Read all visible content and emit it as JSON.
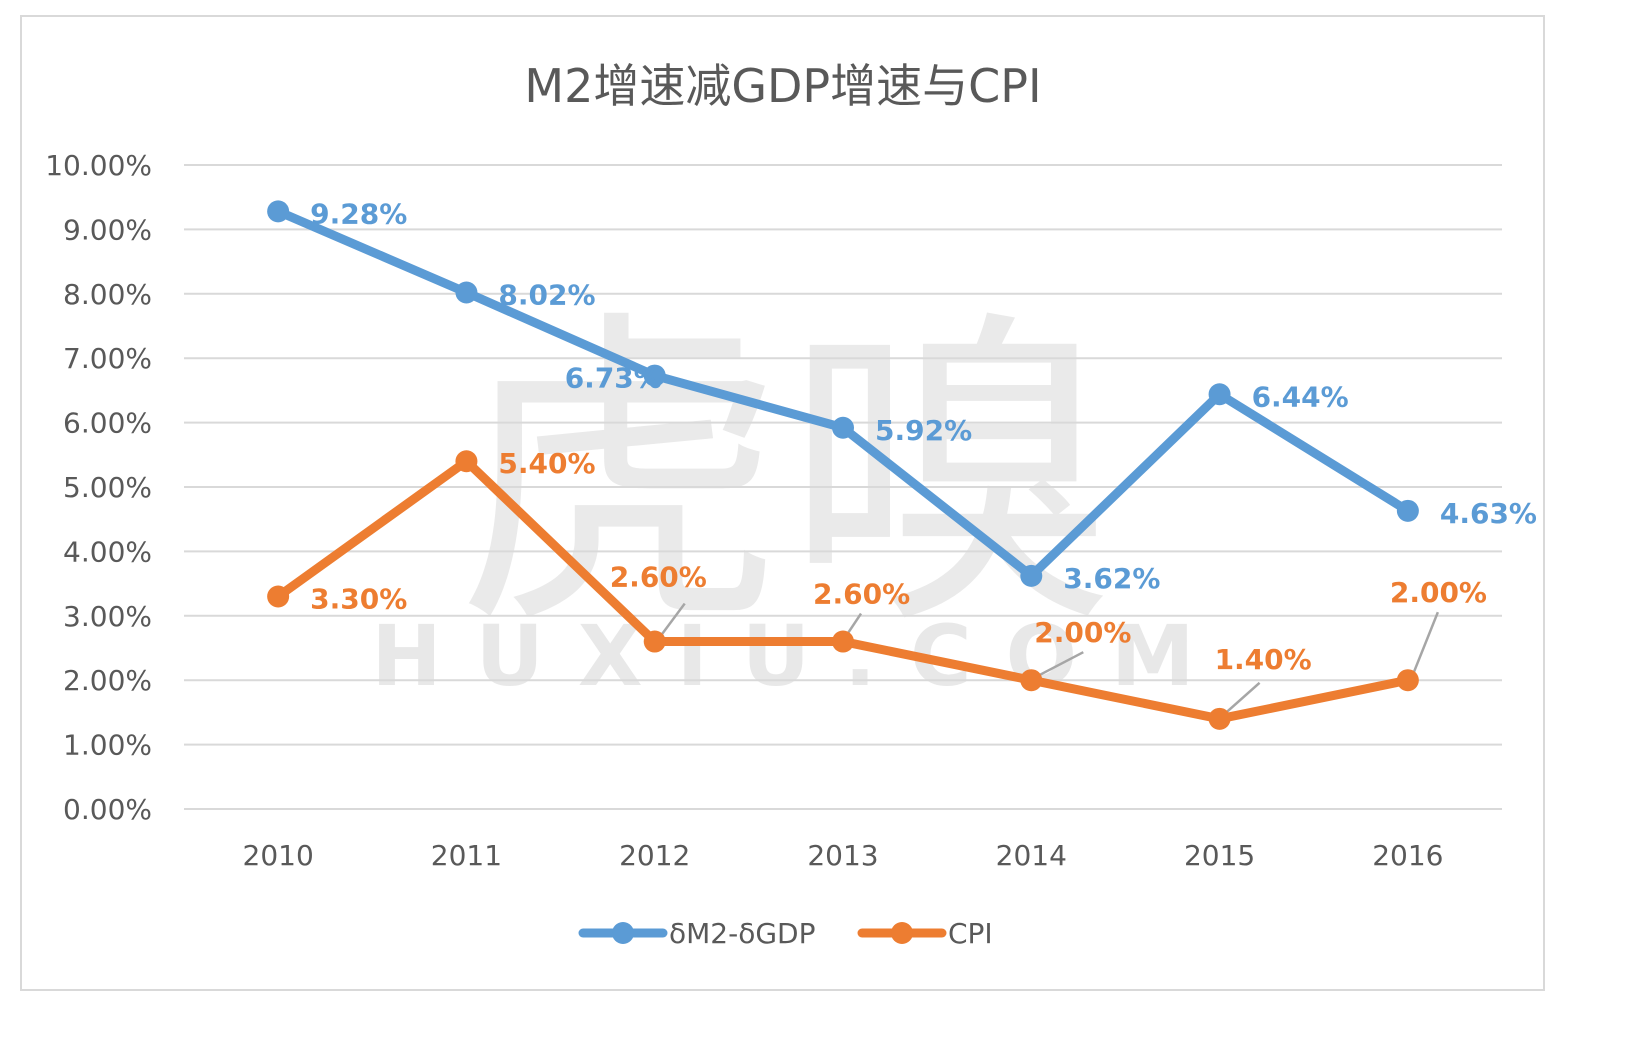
{
  "watermark": {
    "cn": "虎嗅",
    "en": "HUXIU.COM"
  },
  "chart_data": {
    "type": "line",
    "title": "M2增速减GDP增速与CPI",
    "xlabel": "",
    "ylabel": "",
    "categories": [
      "2010",
      "2011",
      "2012",
      "2013",
      "2014",
      "2015",
      "2016"
    ],
    "ylim": [
      0,
      10
    ],
    "yticks": [
      "0.00%",
      "1.00%",
      "2.00%",
      "3.00%",
      "4.00%",
      "5.00%",
      "6.00%",
      "7.00%",
      "8.00%",
      "9.00%",
      "10.00%"
    ],
    "grid": true,
    "legend_position": "bottom",
    "series": [
      {
        "name": "δM2-δGDP",
        "color": "#5b9bd5",
        "values": [
          9.28,
          8.02,
          6.73,
          5.92,
          3.62,
          6.44,
          4.63
        ],
        "labels": [
          "9.28%",
          "8.02%",
          "6.73%",
          "5.92%",
          "3.62%",
          "6.44%",
          "4.63%"
        ]
      },
      {
        "name": "CPI",
        "color": "#ed7d31",
        "values": [
          3.3,
          5.4,
          2.6,
          2.6,
          2.0,
          1.4,
          2.0
        ],
        "labels": [
          "3.30%",
          "5.40%",
          "2.60%",
          "2.60%",
          "2.00%",
          "1.40%",
          "2.00%"
        ]
      }
    ]
  }
}
